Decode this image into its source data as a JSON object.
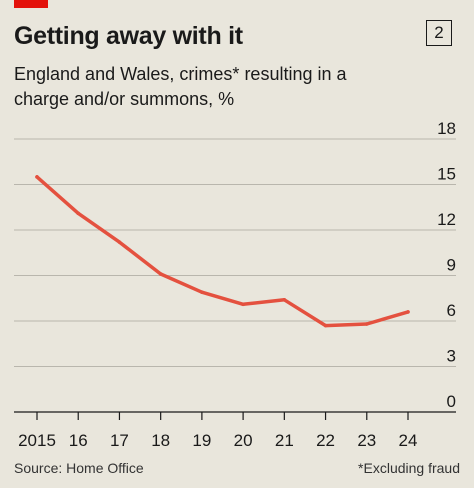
{
  "header": {
    "title": "Getting away with it",
    "badge": "2",
    "subtitle": "England and Wales, crimes* resulting in a charge and/or summons, %"
  },
  "footer": {
    "source": "Source: Home Office",
    "note": "*Excluding fraud"
  },
  "colors": {
    "line": "#e4513f",
    "accent": "#e3120b",
    "background": "#e9e6dc"
  },
  "chart_data": {
    "type": "line",
    "title": "Getting away with it",
    "subtitle": "England and Wales, crimes* resulting in a charge and/or summons, %",
    "x": [
      2015,
      2016,
      2017,
      2018,
      2019,
      2020,
      2021,
      2022,
      2023,
      2024
    ],
    "x_tick_labels": [
      "2015",
      "16",
      "17",
      "18",
      "19",
      "20",
      "21",
      "22",
      "23",
      "24"
    ],
    "series": [
      {
        "values": [
          15.5,
          13.1,
          11.2,
          9.1,
          7.9,
          7.1,
          7.4,
          5.7,
          5.8,
          6.6
        ]
      }
    ],
    "ylim": [
      0,
      18
    ],
    "y_ticks": [
      0,
      3,
      6,
      9,
      12,
      15,
      18
    ],
    "y_tick_labels": [
      "0",
      "3",
      "6",
      "9",
      "12",
      "15",
      "18"
    ],
    "grid": true,
    "y_axis_position": "right"
  }
}
